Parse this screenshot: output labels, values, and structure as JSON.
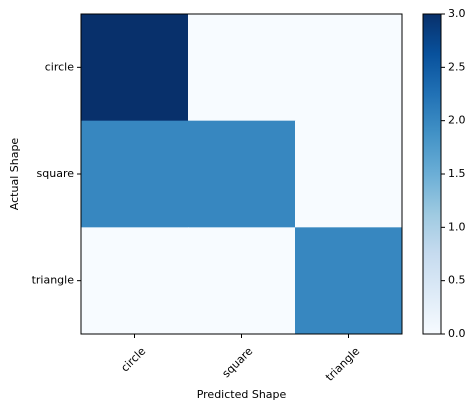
{
  "chart_data": {
    "type": "heatmap",
    "title": "",
    "xlabel": "Predicted Shape",
    "ylabel": "Actual Shape",
    "x_categories": [
      "circle",
      "square",
      "triangle"
    ],
    "y_categories": [
      "circle",
      "square",
      "triangle"
    ],
    "values": [
      [
        3,
        0,
        0
      ],
      [
        2,
        2,
        0
      ],
      [
        0,
        0,
        2
      ]
    ],
    "colormap": "Blues",
    "colorbar": {
      "min": 0.0,
      "max": 3.0,
      "ticks": [
        0.0,
        0.5,
        1.0,
        1.5,
        2.0,
        2.5,
        3.0
      ],
      "tick_labels": [
        "0.0",
        "0.5",
        "1.0",
        "1.5",
        "2.0",
        "2.5",
        "3.0"
      ]
    },
    "grid": false
  }
}
